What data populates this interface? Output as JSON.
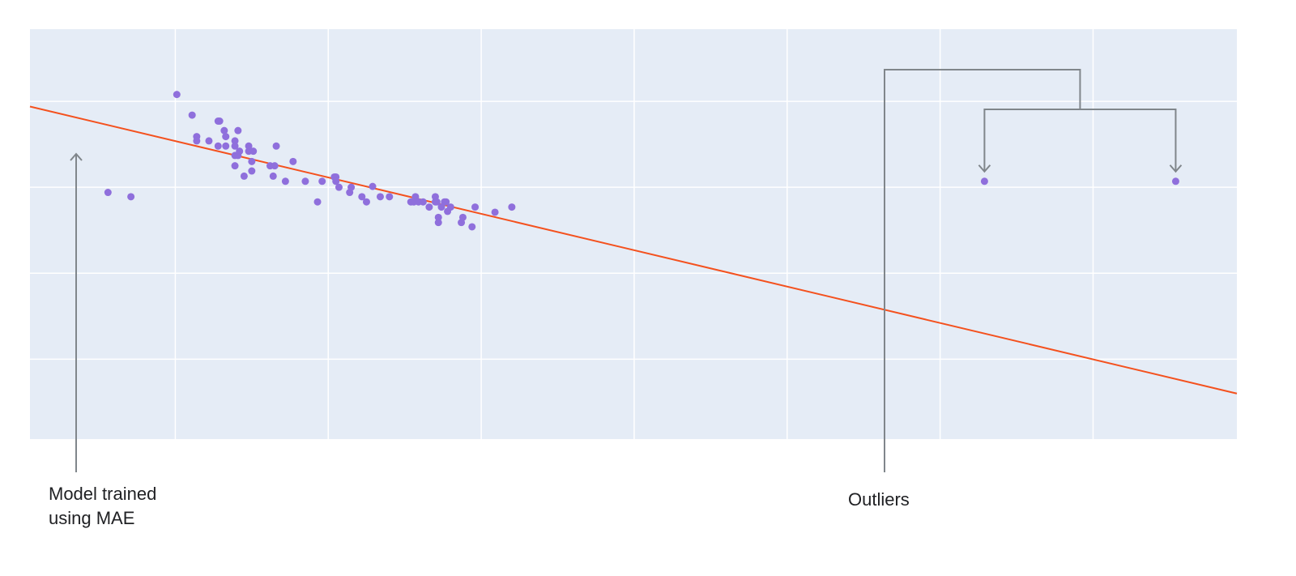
{
  "chart_data": {
    "type": "scatter",
    "title": "",
    "xlabel": "",
    "ylabel": "",
    "xlim": [
      0.05,
      7.94
    ],
    "ylim": [
      0.07,
      4.84
    ],
    "grid": true,
    "x_gridlines": [
      1,
      2,
      3,
      4,
      5,
      6,
      7
    ],
    "y_gridlines": [
      1,
      2,
      3,
      4
    ],
    "tick_labels_shown": false,
    "colors": {
      "background": "#e5ecf6",
      "grid": "#ffffff",
      "points": "#8f6fdc",
      "fit_line": "#f4511e",
      "annotation": "#80868b"
    },
    "points": {
      "x": [
        0.56,
        0.71,
        1.01,
        1.11,
        1.14,
        1.14,
        1.22,
        1.28,
        1.29,
        1.28,
        1.32,
        1.33,
        1.33,
        1.39,
        1.39,
        1.41,
        1.39,
        1.41,
        1.42,
        1.48,
        1.48,
        1.51,
        1.39,
        1.5,
        1.45,
        1.5,
        1.62,
        1.64,
        1.66,
        1.65,
        1.72,
        1.77,
        1.85,
        1.93,
        1.96,
        2.04,
        2.05,
        2.05,
        2.07,
        2.14,
        2.15,
        2.22,
        2.25,
        2.29,
        2.34,
        2.4,
        2.54,
        2.57,
        2.56,
        2.59,
        2.62,
        2.66,
        2.7,
        2.7,
        2.71,
        2.74,
        2.76,
        2.77,
        2.78,
        2.8,
        2.72,
        2.72,
        2.87,
        2.88,
        2.94,
        2.96,
        3.09,
        3.2,
        6.29,
        7.54
      ],
      "y": [
        2.94,
        2.89,
        4.08,
        3.84,
        3.59,
        3.54,
        3.54,
        3.77,
        3.77,
        3.48,
        3.66,
        3.59,
        3.48,
        3.54,
        3.48,
        3.66,
        3.37,
        3.37,
        3.42,
        3.42,
        3.48,
        3.42,
        3.25,
        3.3,
        3.13,
        3.19,
        3.25,
        3.13,
        3.48,
        3.25,
        3.07,
        3.3,
        3.07,
        2.83,
        3.07,
        3.12,
        3.12,
        3.07,
        3.0,
        2.94,
        3.0,
        2.89,
        2.83,
        3.01,
        2.89,
        2.89,
        2.83,
        2.89,
        2.83,
        2.83,
        2.83,
        2.77,
        2.89,
        2.83,
        2.83,
        2.77,
        2.83,
        2.83,
        2.72,
        2.77,
        2.65,
        2.59,
        2.59,
        2.65,
        2.54,
        2.77,
        2.71,
        2.77,
        3.07,
        3.07
      ]
    },
    "fit_line": {
      "x": [
        0.05,
        7.94
      ],
      "y": [
        3.94,
        0.6
      ]
    },
    "annotations": [
      {
        "text": "Model trained\nusing MAE",
        "target": "fit_line"
      },
      {
        "text": "Outliers",
        "targets": [
          {
            "x": 6.29,
            "y": 3.07
          },
          {
            "x": 7.54,
            "y": 3.07
          }
        ]
      }
    ]
  },
  "labels": {
    "mae_line1": "Model trained",
    "mae_line2": "using MAE",
    "outliers": "Outliers"
  }
}
